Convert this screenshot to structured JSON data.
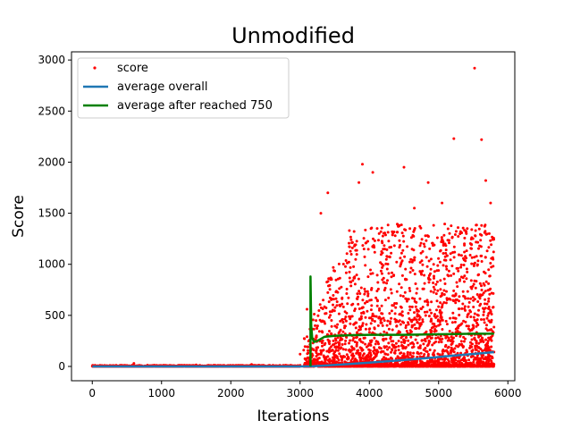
{
  "chart_data": {
    "type": "scatter",
    "title": "Unmodified",
    "xlabel": "Iterations",
    "ylabel": "Score",
    "xlim": [
      -300,
      6100
    ],
    "ylim": [
      -140,
      3080
    ],
    "xticks": [
      0,
      1000,
      2000,
      3000,
      4000,
      5000,
      6000
    ],
    "yticks": [
      0,
      500,
      1000,
      1500,
      2000,
      2500,
      3000
    ],
    "grid": false,
    "legend_position": "top-left",
    "series": [
      {
        "name": "score",
        "kind": "scatter",
        "color": "#ff0000",
        "x_range": [
          0,
          5800
        ],
        "points_sample": [
          [
            600,
            30
          ],
          [
            1500,
            15
          ],
          [
            2300,
            20
          ],
          [
            3000,
            120
          ],
          [
            3100,
            560
          ],
          [
            3300,
            1500
          ],
          [
            3400,
            1700
          ],
          [
            3850,
            1800
          ],
          [
            3900,
            1980
          ],
          [
            4050,
            1900
          ],
          [
            4500,
            1950
          ],
          [
            4650,
            1550
          ],
          [
            4850,
            1800
          ],
          [
            5050,
            1600
          ],
          [
            5220,
            2230
          ],
          [
            5400,
            1300
          ],
          [
            5520,
            2920
          ],
          [
            5620,
            2220
          ],
          [
            5680,
            1820
          ],
          [
            5750,
            1600
          ]
        ]
      },
      {
        "name": "average overall",
        "kind": "line",
        "color": "#1f77b4",
        "x": [
          0,
          1000,
          2000,
          3000,
          3200,
          3600,
          4000,
          4400,
          4800,
          5200,
          5600,
          5800
        ],
        "y": [
          0,
          0,
          0,
          0,
          2,
          18,
          38,
          58,
          80,
          105,
          128,
          140
        ]
      },
      {
        "name": "average after reached 750",
        "kind": "line",
        "color": "#008000",
        "x": [
          3150,
          3150,
          3160,
          3175,
          3200,
          3250,
          3350,
          3500,
          3700,
          4000,
          4500,
          5000,
          5500,
          5800
        ],
        "y": [
          0,
          880,
          400,
          280,
          240,
          250,
          290,
          300,
          305,
          310,
          310,
          315,
          320,
          320
        ]
      }
    ]
  }
}
